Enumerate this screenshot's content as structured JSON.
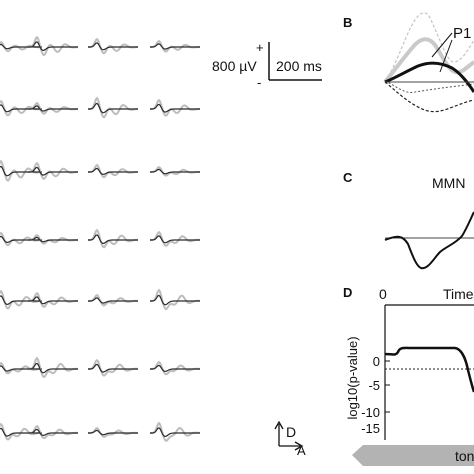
{
  "panel_b": {
    "letter": "B",
    "peak_label": "P1"
  },
  "panel_c": {
    "letter": "C",
    "label": "MMN"
  },
  "panel_d": {
    "letter": "D",
    "xaxis_title": "Time",
    "x_zero": "0",
    "ylabel": "log10(p-value)",
    "y_ticks": [
      "0",
      "-5",
      "-10",
      "-15"
    ],
    "banner_text": "ton"
  },
  "scale_bar": {
    "plus": "+",
    "minus": "-",
    "voltage": "800 µV",
    "time": "200 ms"
  },
  "orientation": {
    "dorsal": "D",
    "anterior": "A"
  },
  "colors": {
    "grey_trace": "#bdbdbd",
    "dark_trace": "#2a2a2a",
    "banner_fill": "#b3b3b3"
  }
}
